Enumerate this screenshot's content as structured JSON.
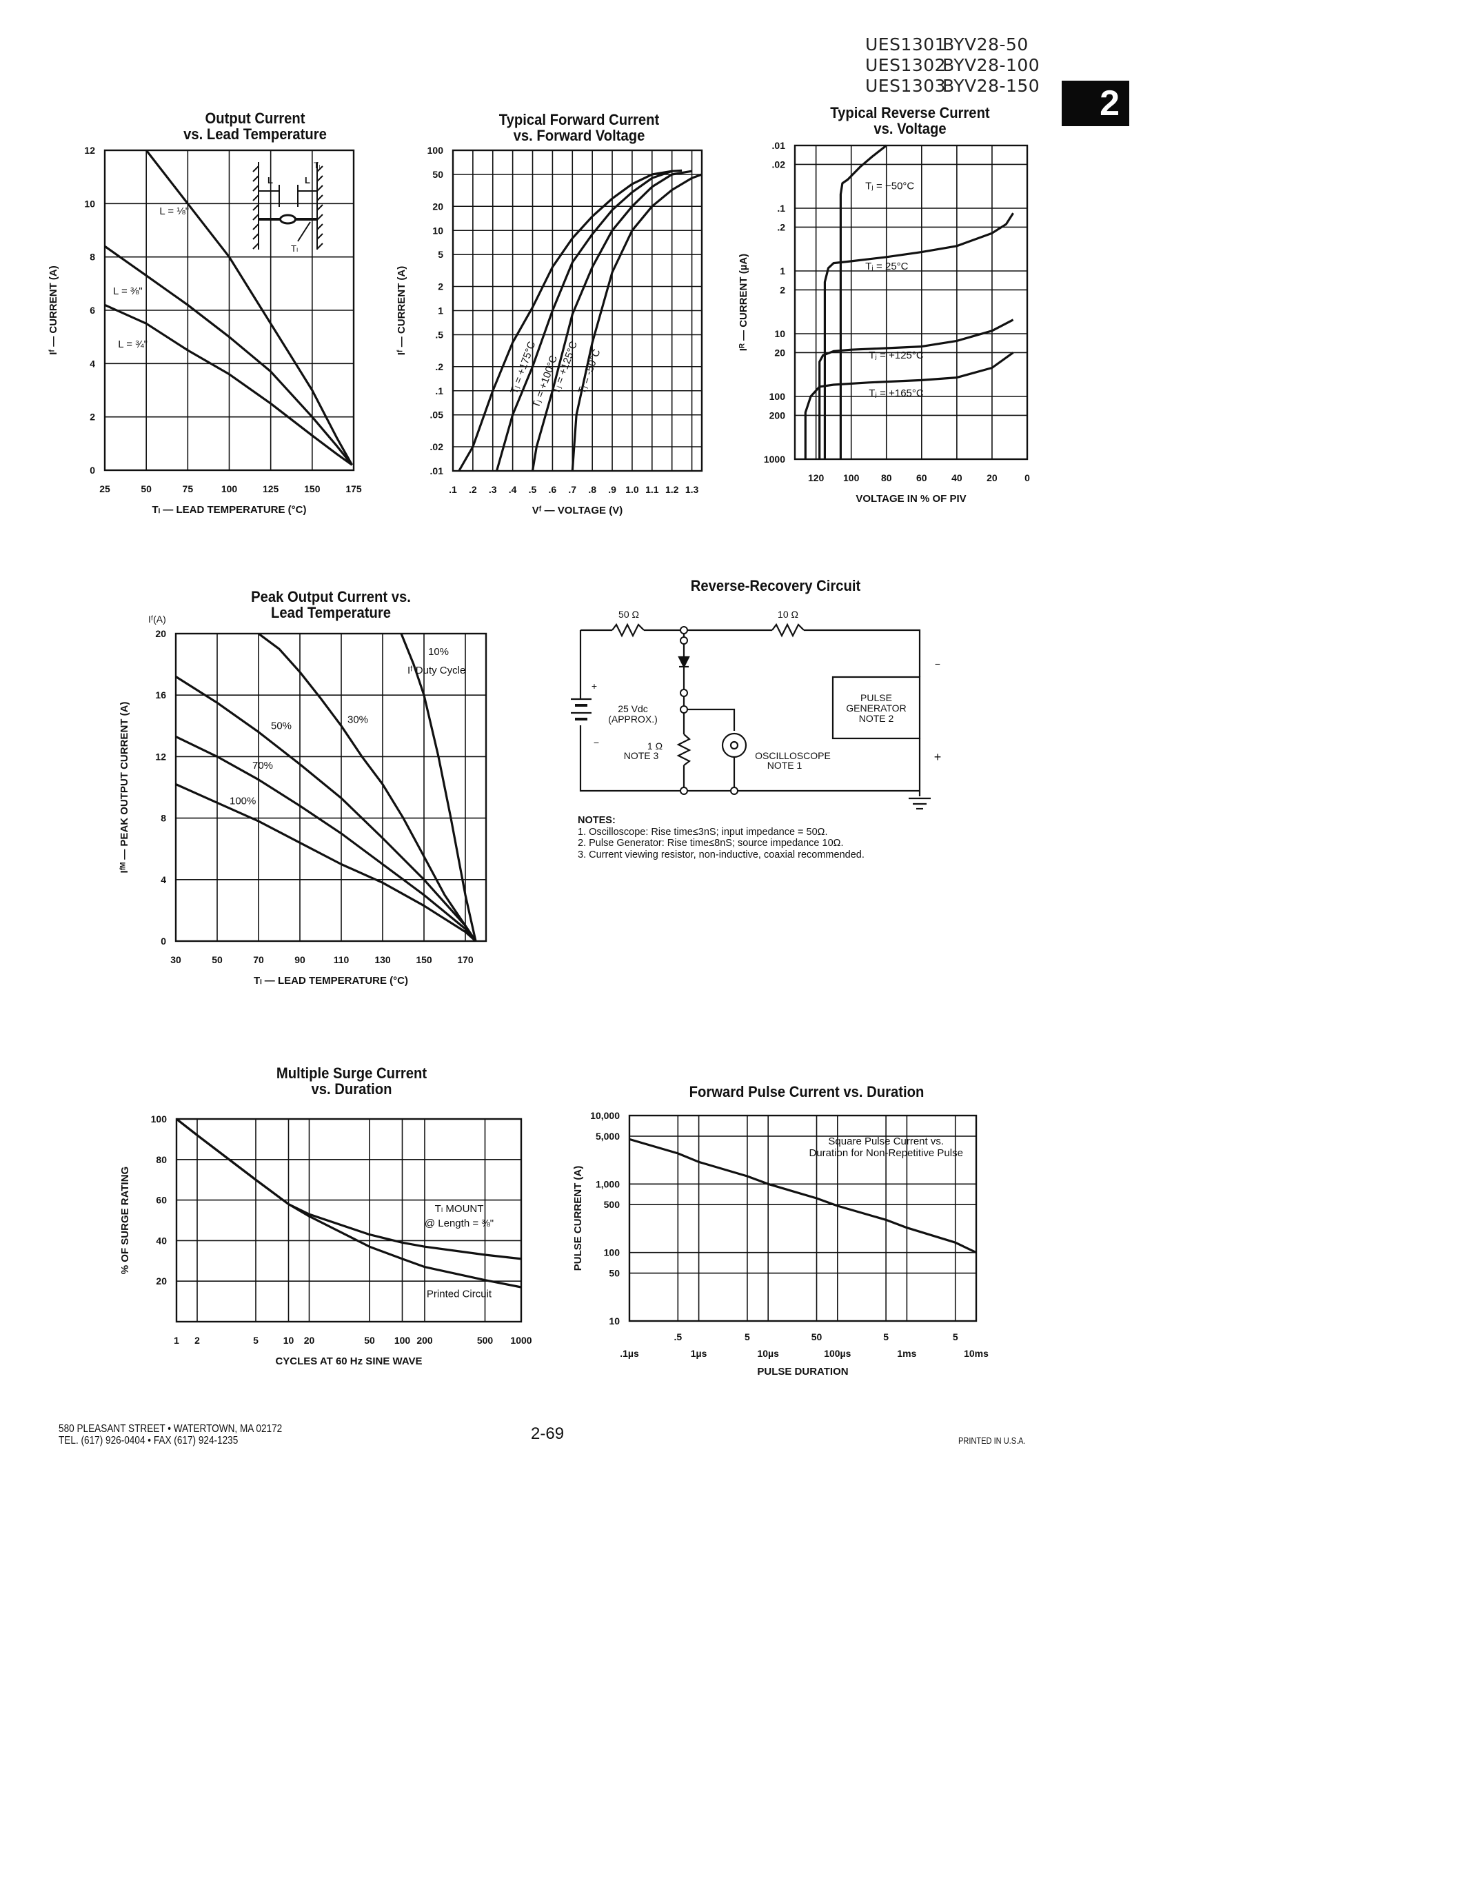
{
  "header": {
    "part_numbers": [
      {
        "ues": "UES1301",
        "byv": "BYV28-50"
      },
      {
        "ues": "UES1302",
        "byv": "BYV28-100"
      },
      {
        "ues": "UES1303",
        "byv": "BYV28-150"
      }
    ],
    "section_tab": "2"
  },
  "chart_data": [
    {
      "id": "output_current",
      "type": "line",
      "title": "Output Current\nvs. Lead Temperature",
      "xlabel": "Tₗ — LEAD TEMPERATURE (°C)",
      "ylabel": "Iᶠ — CURRENT (A)",
      "x_scale": "linear",
      "y_scale": "linear",
      "xlim": [
        25,
        175
      ],
      "ylim": [
        0,
        12
      ],
      "xticks": [
        25,
        50,
        75,
        100,
        125,
        150,
        175
      ],
      "yticks": [
        0,
        2,
        4,
        6,
        8,
        10,
        12
      ],
      "grid": true,
      "series": [
        {
          "name": "L = 1/8\"",
          "x": [
            50,
            75,
            100,
            120,
            140,
            150,
            165,
            174
          ],
          "y": [
            12,
            10,
            8,
            6,
            4,
            3,
            1.2,
            0.2
          ]
        },
        {
          "name": "L = 3/8\"",
          "x": [
            25,
            50,
            75,
            100,
            125,
            150,
            165,
            174
          ],
          "y": [
            8.4,
            7.3,
            6.2,
            5,
            3.7,
            2,
            0.9,
            0.2
          ]
        },
        {
          "name": "L = 3/4\"",
          "x": [
            25,
            50,
            75,
            100,
            125,
            150,
            165,
            174
          ],
          "y": [
            6.2,
            5.5,
            4.5,
            3.6,
            2.5,
            1.3,
            0.6,
            0.2
          ]
        }
      ],
      "annotations": [
        {
          "text": "L = ⅛\"",
          "x": 58,
          "y": 9.6
        },
        {
          "text": "L = ⅜\"",
          "x": 30,
          "y": 6.6
        },
        {
          "text": "L = ¾\"",
          "x": 33,
          "y": 4.6
        }
      ],
      "inset": {
        "labels": [
          "L",
          "L",
          "Tₗ",
          "Tₗ"
        ]
      }
    },
    {
      "id": "forward_current",
      "type": "line",
      "title": "Typical Forward Current\nvs. Forward Voltage",
      "xlabel": "Vᶠ — VOLTAGE (V)",
      "ylabel": "Iᶠ — CURRENT (A)",
      "x_scale": "linear",
      "y_scale": "log",
      "xlim": [
        0.1,
        1.35
      ],
      "ylim": [
        0.01,
        100
      ],
      "xticks": [
        0.1,
        0.2,
        0.3,
        0.4,
        0.5,
        0.6,
        0.7,
        0.8,
        0.9,
        1.0,
        1.1,
        1.2,
        1.3
      ],
      "xtick_labels": [
        ".1",
        ".2",
        ".3",
        ".4",
        ".5",
        ".6",
        ".7",
        ".8",
        ".9",
        "1.0",
        "1.1",
        "1.2",
        "1.3"
      ],
      "yticks": [
        0.01,
        0.02,
        0.05,
        0.1,
        0.2,
        0.5,
        1,
        2,
        5,
        10,
        20,
        50,
        100
      ],
      "ytick_labels": [
        ".01",
        ".02",
        ".05",
        ".1",
        ".2",
        ".5",
        "1",
        "2",
        "5",
        "10",
        "20",
        "50",
        "100"
      ],
      "grid": true,
      "series": [
        {
          "name": "Tⱼ = +175°C",
          "x": [
            0.13,
            0.2,
            0.3,
            0.4,
            0.5,
            0.6,
            0.7,
            0.8,
            0.9,
            1.0,
            1.1,
            1.2
          ],
          "y": [
            0.01,
            0.02,
            0.1,
            0.4,
            1.1,
            3.5,
            8,
            15,
            25,
            38,
            50,
            55
          ]
        },
        {
          "name": "Tⱼ = +100°C",
          "x": [
            0.32,
            0.4,
            0.5,
            0.6,
            0.7,
            0.8,
            0.9,
            1.0,
            1.1,
            1.2,
            1.25
          ],
          "y": [
            0.01,
            0.05,
            0.2,
            1,
            4,
            9,
            18,
            30,
            45,
            55,
            56
          ]
        },
        {
          "name": "Tⱼ = +125°C",
          "x": [
            0.5,
            0.52,
            0.6,
            0.7,
            0.8,
            0.9,
            1.0,
            1.1,
            1.2,
            1.3
          ],
          "y": [
            0.01,
            0.02,
            0.1,
            0.9,
            3.5,
            10,
            20,
            35,
            50,
            55
          ]
        },
        {
          "name": "Tⱼ = -50°C",
          "x": [
            0.7,
            0.72,
            0.8,
            0.9,
            1.0,
            1.1,
            1.2,
            1.3,
            1.35
          ],
          "y": [
            0.01,
            0.05,
            0.4,
            3,
            10,
            20,
            32,
            45,
            50
          ]
        }
      ],
      "annotations": [
        {
          "text": "Tⱼ = +175°C",
          "x": 0.42,
          "y": 0.09,
          "rotate": -70
        },
        {
          "text": "Tⱼ = +100°C",
          "x": 0.53,
          "y": 0.06,
          "rotate": -70
        },
        {
          "text": "Tⱼ = +125°C",
          "x": 0.63,
          "y": 0.09,
          "rotate": -70
        },
        {
          "text": "Tⱼ = -50°C",
          "x": 0.76,
          "y": 0.09,
          "rotate": -70
        }
      ]
    },
    {
      "id": "reverse_current",
      "type": "line",
      "title": "Typical Reverse Current\nvs. Voltage",
      "xlabel": "VOLTAGE IN % OF PIV",
      "ylabel": "Iᴿ — CURRENT (µA)",
      "x_scale": "linear_reversed",
      "y_scale": "log_inverted",
      "xlim": [
        132,
        0
      ],
      "ylim": [
        0.01,
        1000
      ],
      "xticks": [
        120,
        100,
        80,
        60,
        40,
        20,
        0
      ],
      "yticks": [
        0.01,
        0.02,
        0.1,
        0.2,
        1,
        2,
        10,
        20,
        100,
        200,
        1000
      ],
      "ytick_labels": [
        ".01",
        ".02",
        ".1",
        ".2",
        "1",
        "2",
        "10",
        "20",
        "100",
        "200",
        "1000"
      ],
      "grid": true,
      "series": [
        {
          "name": "Tⱼ = -50°C",
          "x": [
            106,
            106,
            105,
            102,
            95,
            88,
            80
          ],
          "y": [
            1000,
            0.06,
            0.04,
            0.035,
            0.022,
            0.015,
            0.01
          ]
        },
        {
          "name": "Tⱼ = 25°C",
          "x": [
            115,
            115,
            113,
            110,
            100,
            80,
            60,
            40,
            20,
            12,
            8
          ],
          "y": [
            1000,
            1.5,
            0.9,
            0.75,
            0.7,
            0.6,
            0.5,
            0.4,
            0.25,
            0.18,
            0.12
          ]
        },
        {
          "name": "Tⱼ = +125°C",
          "x": [
            118,
            118,
            116,
            110,
            100,
            80,
            60,
            40,
            20,
            8
          ],
          "y": [
            1000,
            28,
            22,
            19,
            18,
            17,
            16,
            13,
            9,
            6
          ]
        },
        {
          "name": "Tⱼ = +165°C",
          "x": [
            126,
            126,
            123,
            118,
            110,
            90,
            60,
            40,
            20,
            8
          ],
          "y": [
            1000,
            180,
            100,
            70,
            65,
            60,
            55,
            50,
            35,
            20
          ]
        }
      ],
      "annotations": [
        {
          "text": "Tⱼ = −50°C",
          "x": 92,
          "y": 0.05
        },
        {
          "text": "Tⱼ = 25°C",
          "x": 92,
          "y": 0.95
        },
        {
          "text": "Tⱼ = +125°C",
          "x": 90,
          "y": 25
        },
        {
          "text": "Tⱼ = +165°C",
          "x": 90,
          "y": 100
        }
      ]
    },
    {
      "id": "peak_output_current",
      "type": "line",
      "title": "Peak Output Current vs.\nLead Temperature",
      "xlabel": "Tₗ — LEAD TEMPERATURE (°C)",
      "ylabel": "Iᶠᴹ — PEAK OUTPUT CURRENT (A)",
      "ylabel_top": "Iᶠ(A)",
      "x_scale": "linear",
      "y_scale": "linear",
      "xlim": [
        30,
        180
      ],
      "ylim": [
        0,
        20
      ],
      "xticks": [
        30,
        50,
        70,
        90,
        110,
        130,
        150,
        170
      ],
      "yticks": [
        0,
        4,
        8,
        12,
        16,
        20
      ],
      "grid": true,
      "series": [
        {
          "name": "10%",
          "x": [
            139,
            145,
            150,
            157,
            163,
            170,
            175
          ],
          "y": [
            20,
            18,
            16,
            12,
            8,
            3,
            0
          ]
        },
        {
          "name": "30%",
          "x": [
            70,
            80,
            90,
            100,
            110,
            120,
            130,
            140,
            150,
            160,
            170,
            175
          ],
          "y": [
            20,
            19,
            17.5,
            15.8,
            14,
            12,
            10.2,
            8,
            5.5,
            3,
            1,
            0
          ]
        },
        {
          "name": "50%",
          "x": [
            30,
            50,
            70,
            90,
            110,
            130,
            150,
            170,
            175
          ],
          "y": [
            17.2,
            15.5,
            13.6,
            11.5,
            9.3,
            6.7,
            4,
            1,
            0
          ]
        },
        {
          "name": "70%",
          "x": [
            30,
            50,
            70,
            90,
            110,
            130,
            150,
            170,
            175
          ],
          "y": [
            13.3,
            12,
            10.5,
            8.8,
            7,
            5,
            3,
            0.8,
            0
          ]
        },
        {
          "name": "100%",
          "x": [
            30,
            50,
            70,
            90,
            110,
            130,
            150,
            170,
            175
          ],
          "y": [
            10.2,
            9,
            7.8,
            6.4,
            5,
            3.8,
            2.3,
            0.6,
            0
          ]
        }
      ],
      "annotations": [
        {
          "text": "10%",
          "x": 152,
          "y": 18.6
        },
        {
          "text": "Iᶠ Duty Cycle",
          "x": 142,
          "y": 17.4
        },
        {
          "text": "30%",
          "x": 113,
          "y": 14.2
        },
        {
          "text": "50%",
          "x": 76,
          "y": 13.8
        },
        {
          "text": "70%",
          "x": 67,
          "y": 11.2
        },
        {
          "text": "100%",
          "x": 56,
          "y": 8.9
        }
      ]
    },
    {
      "id": "multiple_surge",
      "type": "line",
      "title": "Multiple Surge Current\nvs. Duration",
      "xlabel": "CYCLES AT 60 Hz SINE WAVE",
      "ylabel": "% OF SURGE RATING",
      "x_scale": "category",
      "xticks": [
        "1",
        "2",
        "5",
        "10",
        "20",
        "50",
        "100",
        "200",
        "500",
        "1000"
      ],
      "xtick_pos": [
        0,
        0.06,
        0.23,
        0.325,
        0.385,
        0.56,
        0.655,
        0.72,
        0.895,
        1.0
      ],
      "ylim": [
        0,
        100
      ],
      "yticks": [
        20,
        40,
        60,
        80,
        100
      ],
      "grid": true,
      "series": [
        {
          "name": "Tₗ MOUNT @ Length = 3/8\"",
          "x": [
            "1",
            "2",
            "5",
            "10",
            "20",
            "50",
            "100",
            "200",
            "500",
            "1000"
          ],
          "y": [
            100,
            92,
            70,
            58,
            53,
            43,
            39,
            37,
            33,
            31
          ]
        },
        {
          "name": "Printed Circuit",
          "x": [
            "1",
            "2",
            "5",
            "10",
            "20",
            "50",
            "100",
            "200",
            "500",
            "1000"
          ],
          "y": [
            100,
            92,
            70,
            58,
            52,
            37,
            31,
            27,
            20.5,
            17
          ]
        }
      ],
      "annotations": [
        {
          "text": "Tₗ MOUNT",
          "x": 0.82,
          "y": 54
        },
        {
          "text": "@ Length = ⅜\"",
          "x": 0.82,
          "y": 47
        },
        {
          "text": "Printed Circuit",
          "x": 0.82,
          "y": 12
        }
      ]
    },
    {
      "id": "forward_pulse",
      "type": "line",
      "title": "Forward Pulse Current vs. Duration",
      "xlabel": "PULSE DURATION",
      "ylabel": "PULSE CURRENT (A)",
      "x_scale": "log",
      "y_scale": "log",
      "xlim_s": [
        1e-07,
        0.01
      ],
      "ylim": [
        10,
        10000
      ],
      "xticks_major": [
        "․.1µs",
        "1µs",
        "10µs",
        "100µs",
        "1ms",
        "10ms"
      ],
      "xticks_minor": [
        ".5",
        "5",
        "50",
        "5",
        "5"
      ],
      "yticks": [
        10,
        50,
        100,
        500,
        1000,
        5000,
        10000
      ],
      "ytick_labels": [
        "10",
        "50",
        "100",
        "500",
        "1,000",
        "5,000",
        "10,000"
      ],
      "grid": true,
      "series": [
        {
          "name": "Square Pulse Current vs. Duration for Non-Repetitive Pulse",
          "x_s": [
            1e-07,
            5e-07,
            1e-06,
            5e-06,
            1e-05,
            5e-05,
            0.0001,
            0.0005,
            0.001,
            0.005,
            0.01
          ],
          "y": [
            4500,
            2800,
            2100,
            1300,
            1000,
            620,
            480,
            300,
            230,
            140,
            100
          ]
        }
      ],
      "annotations": [
        {
          "text": "Square Pulse Current vs.",
          "line": 1
        },
        {
          "text": "Duration for Non-Repetitive Pulse",
          "line": 2
        }
      ]
    }
  ],
  "circuit": {
    "title": "Reverse-Recovery Circuit",
    "r1_label": "50 Ω",
    "r2_label": "10 Ω",
    "battery_label_1": "25 Vdc",
    "battery_label_2": "(APPROX.)",
    "battery_plus": "+",
    "battery_minus": "−",
    "r3_label_1": "1 Ω",
    "r3_label_2": "NOTE 3",
    "scope_label_1": "OSCILLOSCOPE",
    "scope_label_2": "NOTE 1",
    "pulse_gen_1": "PULSE",
    "pulse_gen_2": "GENERATOR",
    "pulse_gen_3": "NOTE 2",
    "pg_minus": "−",
    "pg_plus": "+"
  },
  "notes": {
    "heading": "NOTES:",
    "items": [
      "1. Oscilloscope: Rise time≤3nS; input impedance = 50Ω.",
      "2. Pulse Generator: Rise time≤8nS; source impedance 10Ω.",
      "3. Current viewing resistor, non-inductive, coaxial recommended."
    ]
  },
  "footer": {
    "address_line_1": "580 PLEASANT STREET • WATERTOWN, MA 02172",
    "address_line_2": "TEL. (617) 926-0404 • FAX (617) 924-1235",
    "page_number": "2-69",
    "printed": "PRINTED IN U.S.A."
  }
}
